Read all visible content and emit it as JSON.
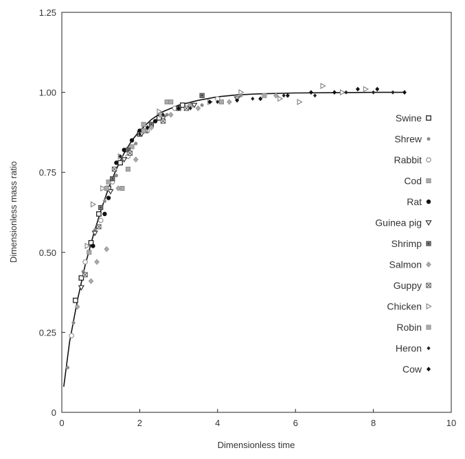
{
  "chart_data": {
    "type": "scatter",
    "title": "",
    "xlabel": "Dimensionless time",
    "ylabel": "Dimensionless mass ratio",
    "xlim": [
      0,
      10
    ],
    "ylim": [
      0,
      1.25
    ],
    "x_ticks": [
      "0",
      "2",
      "4",
      "6",
      "8",
      "10"
    ],
    "x_tick_values": [
      0,
      2,
      4,
      6,
      8,
      10
    ],
    "y_ticks": [
      "0",
      "0.25",
      "0.50",
      "0.75",
      "1.00",
      "1.25"
    ],
    "y_tick_values": [
      0,
      0.25,
      0.5,
      0.75,
      1.0,
      1.25
    ],
    "grid": false,
    "legend_position": "right",
    "fit_curve": {
      "x": [
        0.05,
        0.2,
        0.4,
        0.6,
        0.8,
        1.0,
        1.2,
        1.4,
        1.6,
        1.8,
        2.0,
        2.3,
        2.6,
        3.0,
        3.5,
        4.0,
        4.5,
        5.0,
        6.0,
        7.0,
        8.0,
        8.8
      ],
      "y": [
        0.08,
        0.22,
        0.35,
        0.46,
        0.55,
        0.63,
        0.7,
        0.76,
        0.81,
        0.85,
        0.88,
        0.915,
        0.94,
        0.96,
        0.975,
        0.986,
        0.992,
        0.995,
        0.998,
        0.999,
        1.0,
        1.0
      ]
    },
    "series": [
      {
        "name": "Swine",
        "marker": "open-square",
        "color": "#222222",
        "x": [
          0.35,
          0.5,
          0.75,
          0.95,
          1.2,
          1.5,
          2.0,
          2.5,
          3.1
        ],
        "y": [
          0.35,
          0.42,
          0.53,
          0.62,
          0.7,
          0.78,
          0.87,
          0.92,
          0.96
        ]
      },
      {
        "name": "Shrew",
        "marker": "small-circle",
        "color": "#888888",
        "x": [
          0.15,
          0.3,
          0.55,
          0.85,
          1.1,
          1.4,
          1.9,
          2.7,
          3.6,
          4.6
        ],
        "y": [
          0.14,
          0.28,
          0.44,
          0.57,
          0.66,
          0.74,
          0.84,
          0.93,
          0.96,
          0.99
        ]
      },
      {
        "name": "Rabbit",
        "marker": "open-circle",
        "color": "#999999",
        "x": [
          0.25,
          0.6,
          1.0,
          1.3,
          1.7,
          2.2,
          2.9,
          4.0
        ],
        "y": [
          0.24,
          0.47,
          0.6,
          0.72,
          0.8,
          0.88,
          0.95,
          0.98
        ]
      },
      {
        "name": "Cod",
        "marker": "filled-square",
        "color": "#aaaaaa",
        "x": [
          0.7,
          1.2,
          1.55,
          1.8,
          2.1,
          2.7,
          3.3,
          4.1,
          5.2
        ],
        "y": [
          0.5,
          0.72,
          0.7,
          0.83,
          0.9,
          0.97,
          0.96,
          0.97,
          0.99
        ]
      },
      {
        "name": "Rat",
        "marker": "filled-circle",
        "color": "#111111",
        "x": [
          0.8,
          1.1,
          1.2,
          1.4,
          1.6,
          1.8,
          2.0,
          2.4,
          3.0
        ],
        "y": [
          0.52,
          0.62,
          0.67,
          0.78,
          0.82,
          0.85,
          0.88,
          0.91,
          0.95
        ]
      },
      {
        "name": "Guinea pig",
        "marker": "triangle-down",
        "color": "#333333",
        "x": [
          0.5,
          0.85,
          1.25,
          1.6,
          2.05,
          2.6,
          3.4,
          4.5
        ],
        "y": [
          0.39,
          0.56,
          0.69,
          0.79,
          0.87,
          0.92,
          0.96,
          0.98
        ]
      },
      {
        "name": "Shrimp",
        "marker": "dot-square",
        "color": "#777777",
        "x": [
          1.0,
          1.3,
          1.7,
          2.3,
          3.0,
          3.6
        ],
        "y": [
          0.64,
          0.73,
          0.82,
          0.9,
          0.95,
          0.99
        ]
      },
      {
        "name": "Salmon",
        "marker": "diamond",
        "color": "#aaaaaa",
        "x": [
          0.4,
          0.75,
          0.9,
          1.15,
          1.45,
          1.9,
          2.3,
          2.8,
          3.5,
          4.3,
          5.5
        ],
        "y": [
          0.33,
          0.41,
          0.47,
          0.51,
          0.7,
          0.79,
          0.89,
          0.93,
          0.95,
          0.97,
          0.99
        ]
      },
      {
        "name": "Guppy",
        "marker": "x-square",
        "color": "#555555",
        "x": [
          0.6,
          0.95,
          1.35,
          1.75,
          2.15,
          2.6,
          3.2
        ],
        "y": [
          0.43,
          0.58,
          0.76,
          0.81,
          0.88,
          0.91,
          0.95
        ]
      },
      {
        "name": "Chicken",
        "marker": "triangle-right",
        "color": "#888888",
        "x": [
          0.65,
          0.8,
          1.05,
          1.5,
          2.5,
          3.8,
          4.6,
          5.6,
          6.1,
          6.7,
          7.2,
          7.8
        ],
        "y": [
          0.52,
          0.65,
          0.7,
          0.8,
          0.94,
          0.97,
          1.0,
          0.98,
          0.97,
          1.02,
          1.0,
          1.01
        ]
      },
      {
        "name": "Robin",
        "marker": "filled-square",
        "color": "#aaaaaa",
        "x": [
          1.15,
          1.7,
          2.1,
          2.55,
          2.8
        ],
        "y": [
          0.7,
          0.76,
          0.88,
          0.93,
          0.97
        ]
      },
      {
        "name": "Heron",
        "marker": "small-diamond",
        "color": "#222222",
        "x": [
          1.5,
          2.0,
          2.6,
          3.3,
          4.0,
          4.9,
          5.7,
          6.5,
          7.3,
          8.0,
          8.5
        ],
        "y": [
          0.8,
          0.87,
          0.93,
          0.95,
          0.97,
          0.98,
          0.99,
          0.99,
          1.0,
          1.0,
          1.0
        ]
      },
      {
        "name": "Cow",
        "marker": "filled-diamond",
        "color": "#111111",
        "x": [
          2.2,
          3.0,
          3.8,
          4.5,
          5.1,
          5.8,
          6.4,
          7.0,
          7.6,
          8.1,
          8.8
        ],
        "y": [
          0.89,
          0.95,
          0.97,
          0.975,
          0.98,
          0.99,
          1.0,
          1.0,
          1.01,
          1.01,
          1.0
        ]
      }
    ]
  }
}
